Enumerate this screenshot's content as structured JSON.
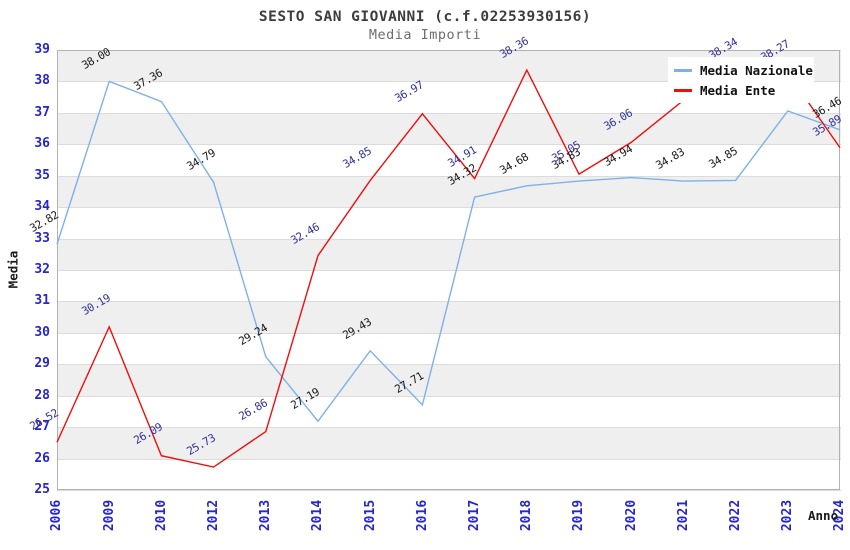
{
  "title": "SESTO SAN GIOVANNI (c.f.02253930156)",
  "subtitle": "Media Importi",
  "legend": {
    "items": [
      {
        "label": "Media Nazionale",
        "color": "#7fb1e8"
      },
      {
        "label": "Media Ente",
        "color": "#ee0e0e"
      }
    ],
    "position": "top-right"
  },
  "colors": {
    "tick_label": "#2626cc",
    "band_grey": "#efefef",
    "gridline": "#dcdcdc",
    "nazionale_line": "#7fb1e8",
    "nazionale_point_labels": "#1a1a1a",
    "ente_line": "#ee0e0e",
    "ente_point_labels": "#333399"
  },
  "chart_data": {
    "type": "line",
    "title": "SESTO SAN GIOVANNI (c.f.02253930156)",
    "subtitle": "Media Importi",
    "xlabel": "Anno",
    "ylabel": "Media",
    "ylim": [
      25,
      39
    ],
    "y_ticks": [
      39,
      38,
      37,
      36,
      35,
      34,
      33,
      32,
      31,
      30,
      29,
      28,
      27,
      26,
      25
    ],
    "grid": true,
    "banded_background": true,
    "legend_position": "top-right",
    "categories": [
      "2006",
      "2009",
      "2010",
      "2012",
      "2013",
      "2014",
      "2015",
      "2016",
      "2017",
      "2018",
      "2019",
      "2020",
      "2021",
      "2022",
      "2023",
      "2024"
    ],
    "series": [
      {
        "name": "Media Nazionale",
        "color": "#7fb1e8",
        "label_color": "#1a1a1a",
        "values": [
          32.82,
          38.0,
          37.36,
          34.79,
          29.24,
          27.19,
          29.43,
          27.71,
          34.32,
          34.68,
          34.83,
          34.94,
          34.83,
          34.85,
          37.06,
          36.46
        ],
        "labels": [
          "32.82",
          "38.00",
          "37.36",
          "34.79",
          "29.24",
          "27.19",
          "29.43",
          "27.71",
          "34.32",
          "34.68",
          "34.83",
          "34.94",
          "34.83",
          "34.85",
          "",
          "36.46"
        ]
      },
      {
        "name": "Media Ente",
        "color": "#ee0e0e",
        "label_color": "#333399",
        "values": [
          26.52,
          30.19,
          26.09,
          25.73,
          26.86,
          32.46,
          34.85,
          36.97,
          34.91,
          38.36,
          35.05,
          36.06,
          37.4,
          38.34,
          38.27,
          35.89
        ],
        "labels": [
          "26.52",
          "30.19",
          "26.09",
          "25.73",
          "26.86",
          "32.46",
          "34.85",
          "36.97",
          "34.91",
          "38.36",
          "35.05",
          "36.06",
          "",
          "38.34",
          "38.27",
          "35.89"
        ]
      }
    ]
  }
}
